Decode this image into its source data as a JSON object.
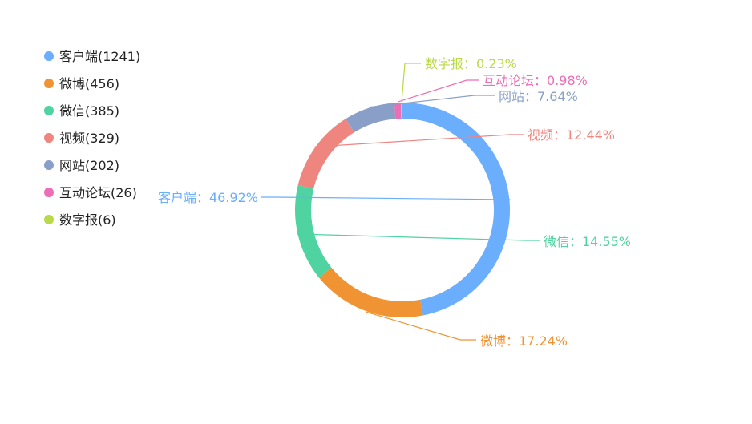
{
  "chart_data": {
    "type": "pie",
    "variant": "donut",
    "legend_position": "top-left",
    "legend_format": "{name}({value})",
    "label_format": "{name}：{percent}%",
    "slices": [
      {
        "name": "客户端",
        "value": 1241,
        "percent": "46.92",
        "color": "#6aaefd"
      },
      {
        "name": "微博",
        "value": 456,
        "percent": "17.24",
        "color": "#f09433"
      },
      {
        "name": "微信",
        "value": 385,
        "percent": "14.55",
        "color": "#4fd3a0"
      },
      {
        "name": "视频",
        "value": 329,
        "percent": "12.44",
        "color": "#ee857f"
      },
      {
        "name": "网站",
        "value": 202,
        "percent": "7.64",
        "color": "#8a9fc8"
      },
      {
        "name": "互动论坛",
        "value": 26,
        "percent": "0.98",
        "color": "#ec6eb5"
      },
      {
        "name": "数字报",
        "value": 6,
        "percent": "0.23",
        "color": "#b9d946"
      }
    ]
  }
}
